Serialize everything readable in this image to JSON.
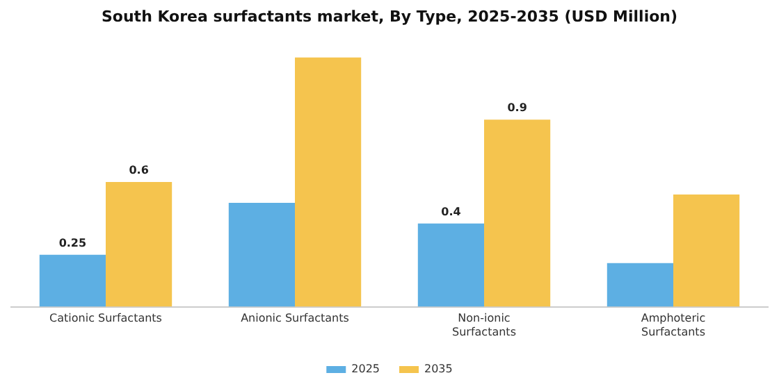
{
  "chart_data": {
    "type": "bar",
    "title": "South Korea surfactants market, By Type, 2025-2035 (USD Million)",
    "categories": [
      "Cationic Surfactants",
      "Anionic Surfactants",
      "Non-ionic Surfactants",
      "Amphoteric Surfactants"
    ],
    "series": [
      {
        "name": "2025",
        "color": "#5dafe3",
        "values": [
          0.25,
          0.5,
          0.4,
          0.21
        ],
        "value_labels": [
          "0.25",
          null,
          "0.4",
          null
        ]
      },
      {
        "name": "2035",
        "color": "#f5c44e",
        "values": [
          0.6,
          1.2,
          0.9,
          0.54
        ],
        "value_labels": [
          "0.6",
          null,
          "0.9",
          null
        ]
      }
    ],
    "grid": false,
    "legend": "bottom",
    "tick_labels": "x"
  }
}
